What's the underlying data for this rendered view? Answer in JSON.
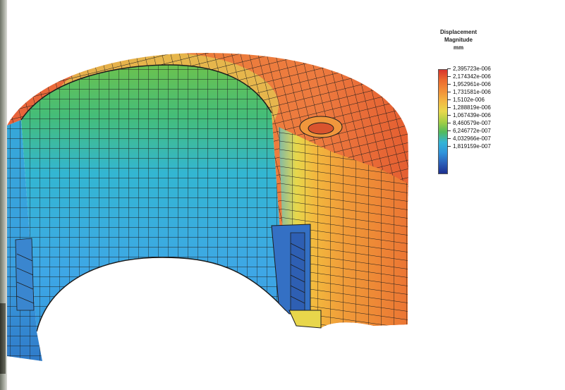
{
  "legend": {
    "title_line1": "Displacement",
    "title_line2": "Magnitude",
    "unit": "mm",
    "values": [
      "2,395723e-006",
      "2,174342e-006",
      "1,952961e-006",
      "1,731581e-006",
      "1,5102e-006",
      "1,288819e-006",
      "1,067439e-006",
      "8,460579e-007",
      "6,246772e-007",
      "4,032966e-007",
      "1,819159e-007"
    ],
    "colors": [
      "#d7342c",
      "#ec6a2e",
      "#f28f38",
      "#f3b642",
      "#e9d84c",
      "#a7cf45",
      "#52bb5c",
      "#34b4d6",
      "#2f93da",
      "#2b5fb8",
      "#1d2f8f"
    ]
  },
  "model": {
    "mesh_color": "#1c1c1c"
  }
}
